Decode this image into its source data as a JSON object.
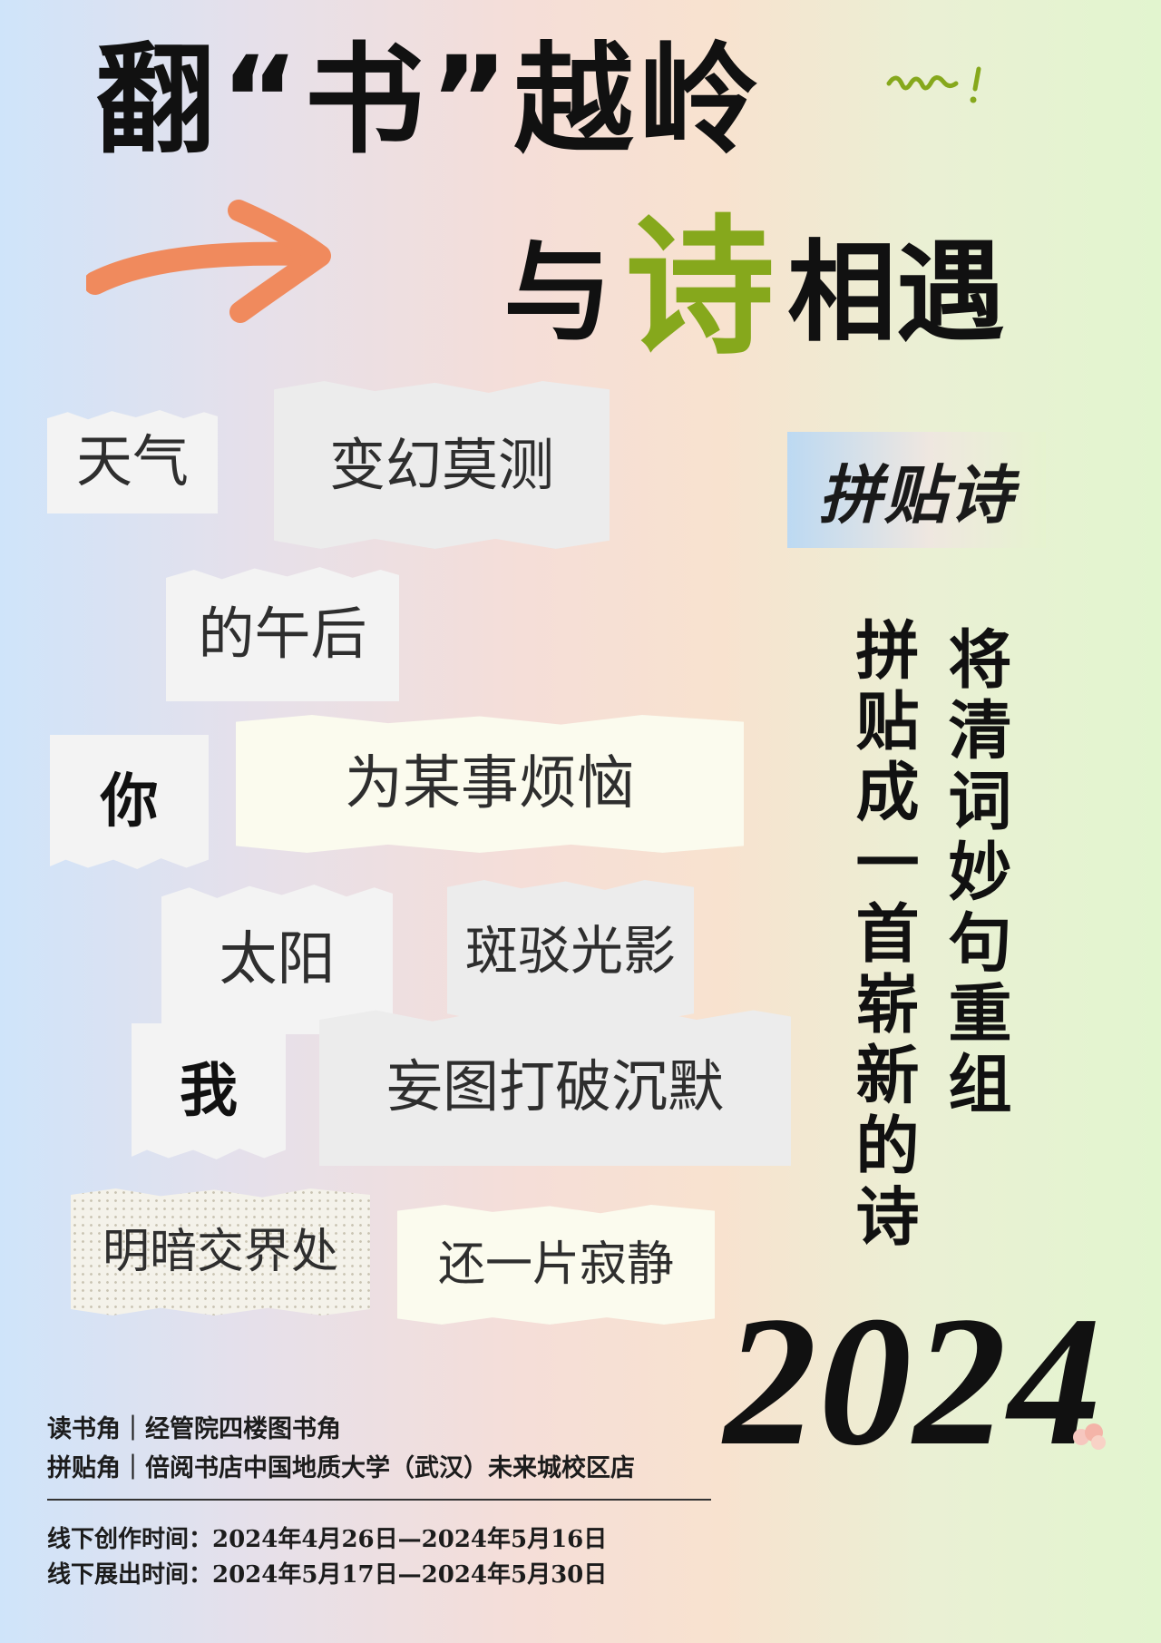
{
  "title": {
    "line1": "翻“书”越岭",
    "line2_part1": "与",
    "line2_highlight": "诗",
    "line2_part2": "相遇"
  },
  "poem_fragments": [
    "天气",
    "变幻莫测",
    "的午后",
    "你",
    "为某事烦恼",
    "太阳",
    "斑驳光影",
    "我",
    "妄图打破沉默",
    "明暗交界处",
    "还一片寂静"
  ],
  "tag": "拼贴诗",
  "vertical_lines": [
    "将清词妙句重组",
    "拼贴成一首崭新的诗"
  ],
  "year": "2024",
  "locations": [
    "读书角｜经管院四楼图书角",
    "拼贴角｜倍阅书店中国地质大学（武汉）未来城校区店"
  ],
  "times": [
    "线下创作时间：2024年4月26日—2024年5月16日",
    "线下展出时间：2024年5月17日—2024年5月30日"
  ],
  "colors": {
    "accent_green": "#86a81c",
    "arrow_orange": "#f08a5d",
    "text": "#111111"
  }
}
